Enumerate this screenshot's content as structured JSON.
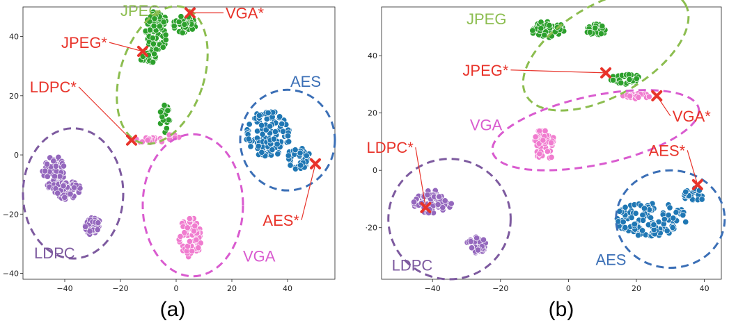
{
  "colors": {
    "JPEG": "#2ca02c",
    "VGA": "#f07ccf",
    "AES": "#1f77b4",
    "LDPC": "#9467bd",
    "JPEG_ellipse": "#8cbd4f",
    "VGA_ellipse": "#d95bcf",
    "AES_ellipse": "#3b6fb6",
    "LDPC_ellipse": "#7d5a9f",
    "star": "#e8332a"
  },
  "chart_data": [
    {
      "type": "scatter",
      "panel_label": "(a)",
      "xlim": [
        -55,
        57
      ],
      "ylim": [
        -42,
        50
      ],
      "xticks": [
        -40,
        -20,
        0,
        20,
        40
      ],
      "yticks": [
        -40,
        -20,
        0,
        20,
        40
      ],
      "xtick_labels": [
        "−40",
        "−20",
        "0",
        "20",
        "40"
      ],
      "ytick_labels": [
        "−40",
        "−20",
        "0",
        "20",
        "40"
      ],
      "grid": false,
      "clusters": [
        {
          "name": "JPEG",
          "blobs": [
            [
              -7,
              42,
              4,
              7,
              70
            ],
            [
              3,
              44,
              4,
              3,
              40
            ],
            [
              -10,
              33,
              3,
              2,
              35
            ],
            [
              -4,
              12,
              2,
              5,
              20
            ]
          ]
        },
        {
          "name": "VGA",
          "blobs": [
            [
              -10,
              5,
              6,
              1,
              20
            ],
            [
              5,
              -28,
              4,
              7,
              70
            ],
            [
              -2,
              6,
              3,
              1,
              8
            ]
          ]
        },
        {
          "name": "AES",
          "blobs": [
            [
              33,
              7,
              8,
              8,
              110
            ],
            [
              44,
              -1,
              4,
              4,
              40
            ]
          ]
        },
        {
          "name": "LDPC",
          "blobs": [
            [
              -44,
              -6,
              4,
              6,
              60
            ],
            [
              -39,
              -12,
              5,
              3,
              50
            ],
            [
              -30,
              -24,
              3,
              3,
              40
            ]
          ]
        }
      ],
      "group_labels": [
        {
          "text": "JPEG",
          "x": -20,
          "y": 47
        },
        {
          "text": "AES",
          "x": 41,
          "y": 23
        },
        {
          "text": "LDPC",
          "x": -51,
          "y": -35
        },
        {
          "text": "VGA",
          "x": 24,
          "y": -36
        }
      ],
      "ellipses": [
        {
          "name": "JPEG",
          "cx": -5,
          "cy": 27,
          "rx": 15,
          "ry": 24,
          "rot": 18
        },
        {
          "name": "VGA",
          "cx": 6,
          "cy": -17,
          "rx": 18,
          "ry": 24,
          "rot": 0
        },
        {
          "name": "AES",
          "cx": 40,
          "cy": 5,
          "rx": 17,
          "ry": 17,
          "rot": 0
        },
        {
          "name": "LDPC",
          "cx": -37,
          "cy": -13,
          "rx": 18,
          "ry": 22,
          "rot": 0
        }
      ],
      "stars": [
        {
          "label": "VGA*",
          "x": 5,
          "y": 48,
          "lx": 17,
          "ly": 48
        },
        {
          "label": "JPEG*",
          "x": -12,
          "y": 35,
          "lx": -24,
          "ly": 38
        },
        {
          "label": "LDPC*",
          "x": -16,
          "y": 5,
          "lx": -35,
          "ly": 23
        },
        {
          "label": "AES*",
          "x": 50,
          "y": -3,
          "lx": 45,
          "ly": -22
        }
      ]
    },
    {
      "type": "scatter",
      "panel_label": "(b)",
      "xlim": [
        -55,
        45
      ],
      "ylim": [
        -38,
        57
      ],
      "xticks": [
        -40,
        -20,
        0,
        20,
        40
      ],
      "yticks": [
        -20,
        0,
        20,
        40
      ],
      "xtick_labels": [
        "−40",
        "−20",
        "0",
        "20",
        "40"
      ],
      "ytick_labels": [
        "·20",
        "0",
        "20",
        "40"
      ],
      "grid": false,
      "clusters": [
        {
          "name": "JPEG",
          "blobs": [
            [
              -6,
              49,
              5,
              3,
              60
            ],
            [
              8,
              49,
              3,
              2,
              30
            ],
            [
              16,
              32,
              5,
              2,
              30
            ]
          ]
        },
        {
          "name": "VGA",
          "blobs": [
            [
              -7,
              9,
              3,
              6,
              55
            ],
            [
              20,
              26,
              4,
              1,
              22
            ]
          ]
        },
        {
          "name": "AES",
          "blobs": [
            [
              24,
              -17,
              11,
              6,
              120
            ],
            [
              37,
              -9,
              3,
              3,
              25
            ]
          ]
        },
        {
          "name": "LDPC",
          "blobs": [
            [
              -40,
              -11,
              6,
              4,
              70
            ],
            [
              -27,
              -26,
              3,
              3,
              40
            ]
          ]
        }
      ],
      "group_labels": [
        {
          "text": "JPEG",
          "x": -30,
          "y": 51
        },
        {
          "text": "VGA",
          "x": -29,
          "y": 14
        },
        {
          "text": "LDPC",
          "x": -52,
          "y": -35
        },
        {
          "text": "AES",
          "x": 8,
          "y": -33
        }
      ],
      "ellipses": [
        {
          "name": "JPEG",
          "cx": 11,
          "cy": 42,
          "rx": 27,
          "ry": 16,
          "rot": -30
        },
        {
          "name": "VGA",
          "cx": 8,
          "cy": 14,
          "rx": 31,
          "ry": 12,
          "rot": -12
        },
        {
          "name": "AES",
          "cx": 30,
          "cy": -17,
          "rx": 16,
          "ry": 17,
          "rot": 0
        },
        {
          "name": "LDPC",
          "cx": -35,
          "cy": -17,
          "rx": 18,
          "ry": 21,
          "rot": 0
        }
      ],
      "stars": [
        {
          "label": "JPEG*",
          "x": 11,
          "y": 34,
          "lx": -17,
          "ly": 35
        },
        {
          "label": "VGA*",
          "x": 26,
          "y": 26,
          "lx": 30,
          "ly": 19
        },
        {
          "label": "AES*",
          "x": 38,
          "y": -5,
          "lx": 35,
          "ly": 7
        },
        {
          "label": "LDPC*",
          "x": -42,
          "y": -13,
          "lx": -45,
          "ly": 8
        }
      ]
    }
  ]
}
